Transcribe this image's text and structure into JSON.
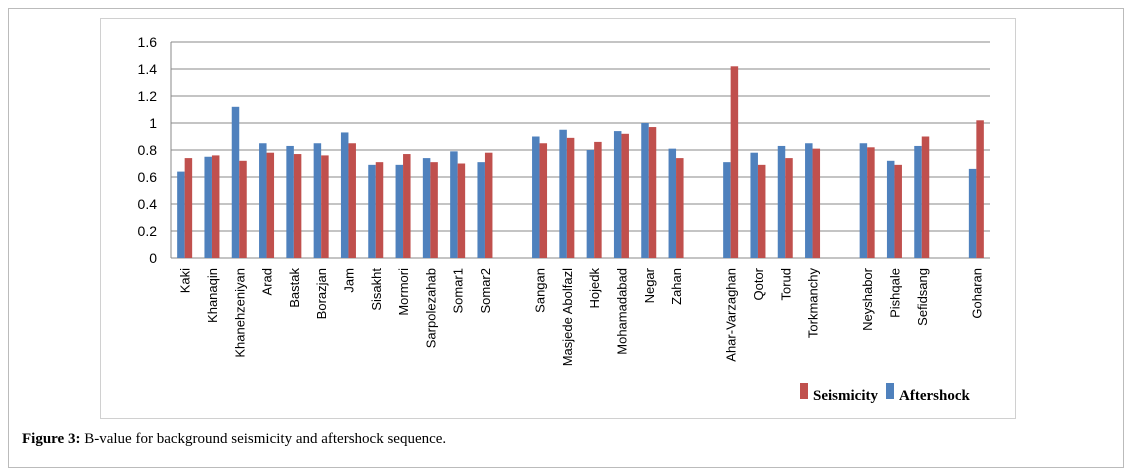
{
  "chart_data": {
    "type": "bar",
    "categories": [
      "Kaki",
      "Khanaqin",
      "Khanehzeniyan",
      "Arad",
      "Bastak",
      "Borazjan",
      "Jam",
      "Sisakht",
      "Mormori",
      "Sarpolezahab",
      "Somar1",
      "Somar2",
      null,
      "Sangan",
      "Masjede Abolfazl",
      "Hojedk",
      "Mohamadabad",
      "Negar",
      "Zahan",
      null,
      "Ahar-Varzaghan",
      "Qotor",
      "Torud",
      "Torkmanchy",
      null,
      "Neyshabor",
      "Pishqale",
      "Sefidsang",
      null,
      "Goharan"
    ],
    "series": [
      {
        "name": "Aftershock",
        "color": "#4f81bd",
        "values": [
          0.64,
          0.75,
          1.12,
          0.85,
          0.83,
          0.85,
          0.93,
          0.69,
          0.69,
          0.74,
          0.79,
          0.71,
          null,
          0.9,
          0.95,
          0.8,
          0.94,
          1.0,
          0.81,
          null,
          0.71,
          0.78,
          0.83,
          0.85,
          null,
          0.85,
          0.72,
          0.83,
          null,
          0.66
        ]
      },
      {
        "name": "Seismicity",
        "color": "#c0504d",
        "values": [
          0.74,
          0.76,
          0.72,
          0.78,
          0.77,
          0.76,
          0.85,
          0.71,
          0.77,
          0.71,
          0.7,
          0.78,
          null,
          0.85,
          0.89,
          0.86,
          0.92,
          0.97,
          0.74,
          null,
          1.42,
          0.69,
          0.74,
          0.81,
          null,
          0.82,
          0.69,
          0.9,
          null,
          1.02
        ]
      }
    ],
    "ylim": [
      0,
      1.6
    ],
    "yticks": [
      0,
      0.2,
      0.4,
      0.6,
      0.8,
      1,
      1.2,
      1.4,
      1.6
    ],
    "grid": true
  },
  "caption": {
    "label": "Figure 3:",
    "text": "B-value for background seismicity and aftershock sequence."
  }
}
